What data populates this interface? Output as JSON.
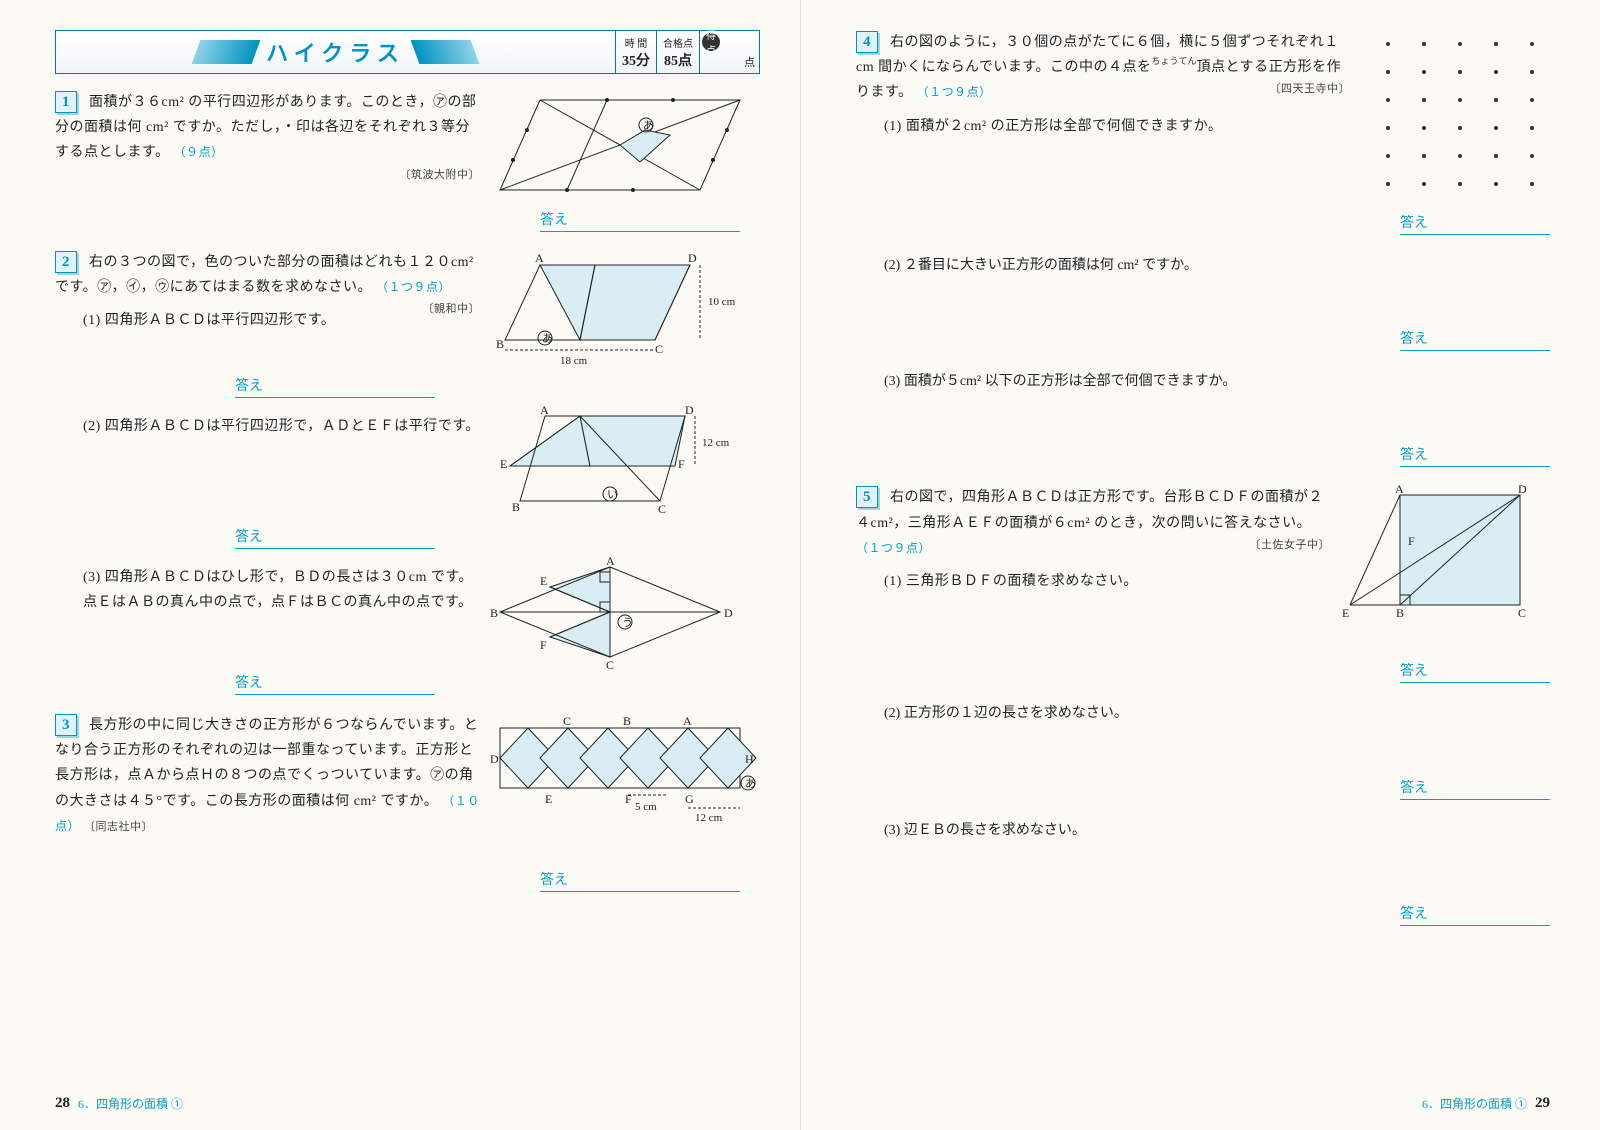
{
  "banner": {
    "title": "ハイクラス",
    "time_label": "時 間",
    "time_value": "35分",
    "pass_label": "合格点",
    "pass_value": "85点",
    "score_label": "得点",
    "score_unit": "点"
  },
  "colors": {
    "accent": "#00a0c8",
    "accent_dark": "#007a9e",
    "badge_bg": "#dff3f8",
    "fig_fill": "#d8eef4",
    "text": "#222222"
  },
  "left_page": {
    "page_number": "28",
    "chapter": "6．四角形の面積 ①",
    "problems": [
      {
        "num": "1",
        "text": "面積が３６cm² の平行四辺形があります。このとき，㋐の部分の面積は何 cm² ですか。ただし，・印は各辺をそれぞれ３等分する点とします。",
        "pts": "（９点）",
        "source": "〔筑波大附中〕",
        "answer_label": "答え"
      },
      {
        "num": "2",
        "text": "右の３つの図で，色のついた部分の面積はどれも１２０cm² です。㋐，㋑，㋒にあてはまる数を求めなさい。",
        "pts": "（１つ９点）",
        "source": "〔親和中〕",
        "subs": [
          {
            "label": "(1)",
            "text": "四角形ＡＢＣＤは平行四辺形です。",
            "answer": "答え"
          },
          {
            "label": "(2)",
            "text": "四角形ＡＢＣＤは平行四辺形で，ＡＤとＥＦは平行です。",
            "answer": "答え"
          },
          {
            "label": "(3)",
            "text": "四角形ＡＢＣＤはひし形で，ＢＤの長さは３０cm です。点ＥはＡＢの真ん中の点で，点ＦはＢＣの真ん中の点です。",
            "answer": "答え"
          }
        ],
        "fig_labels": {
          "A": "A",
          "B": "B",
          "C": "C",
          "D": "D",
          "E": "E",
          "F": "F",
          "len18": "18 cm",
          "len10": "10 cm",
          "len12": "12 cm"
        }
      },
      {
        "num": "3",
        "text": "長方形の中に同じ大きさの正方形が６つならんでいます。となり合う正方形のそれぞれの辺は一部重なっています。正方形と長方形は，点Ａから点Ｈの８つの点でくっついています。㋐の角の大きさは４５°です。この長方形の面積は何 cm² ですか。",
        "pts": "（１０点）",
        "source": "〔同志社中〕",
        "answer_label": "答え",
        "fig_labels": {
          "A": "A",
          "B": "B",
          "C": "C",
          "D": "D",
          "E": "E",
          "F": "F",
          "G": "G",
          "H": "H",
          "len5": "5 cm",
          "len12": "12 cm"
        }
      }
    ]
  },
  "right_page": {
    "page_number": "29",
    "chapter": "6．四角形の面積 ①",
    "problems": [
      {
        "num": "4",
        "text_pre": "右の図のように，３０個の点がたてに６個，横に５個ずつそれぞれ１cm 間かくにならんでいます。この中の４点を",
        "ruby1": "ちょうてん",
        "text_post": "頂点とする正方形を作ります。",
        "pts": "（１つ９点）",
        "source": "〔四天王寺中〕",
        "subs": [
          {
            "label": "(1)",
            "text": "面積が２cm² の正方形は全部で何個できますか。",
            "answer": "答え"
          },
          {
            "label": "(2)",
            "text": "２番目に大きい正方形の面積は何 cm² ですか。",
            "answer": "答え"
          },
          {
            "label": "(3)",
            "text": "面積が５cm² 以下の正方形は全部で何個できますか。",
            "answer": "答え"
          }
        ],
        "grid": {
          "rows": 6,
          "cols": 5
        }
      },
      {
        "num": "5",
        "text": "右の図で，四角形ＡＢＣＤは正方形です。台形ＢＣＤＦの面積が２４cm²，三角形ＡＥＦの面積が６cm² のとき，次の問いに答えなさい。",
        "pts": "（１つ９点）",
        "source": "〔土佐女子中〕",
        "subs": [
          {
            "label": "(1)",
            "text": "三角形ＢＤＦの面積を求めなさい。",
            "answer": "答え"
          },
          {
            "label": "(2)",
            "text": "正方形の１辺の長さを求めなさい。",
            "answer": "答え"
          },
          {
            "label": "(3)",
            "text": "辺ＥＢの長さを求めなさい。",
            "answer": "答え"
          }
        ],
        "fig_labels": {
          "A": "A",
          "B": "B",
          "C": "C",
          "D": "D",
          "E": "E",
          "F": "F"
        }
      }
    ]
  }
}
